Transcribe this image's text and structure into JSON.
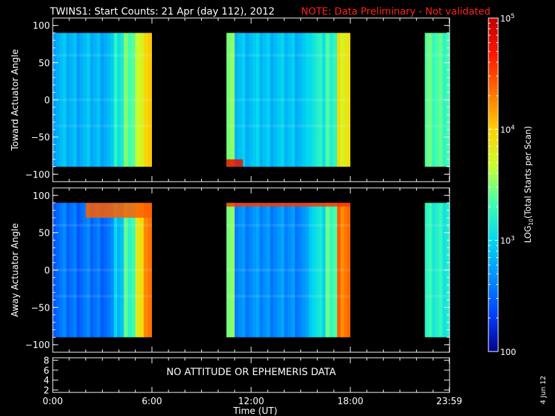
{
  "header": {
    "title": "TWINS1: Start Counts: 21 Apr (day 112), 2012",
    "note": "NOTE: Data Preliminary - Not validated",
    "note_color": "#ff2020"
  },
  "date_stamp": "4 Jun 12",
  "colorbar": {
    "label": "LOG10(Total Starts per Scan)",
    "label_main": "LOG",
    "label_sub": "10",
    "label_rest": "(Total Starts per Scan)",
    "scale": "log",
    "range": [
      100,
      100000
    ],
    "ticks": [
      {
        "value": 100,
        "label": "100"
      },
      {
        "value": 1000,
        "label_base": "10",
        "label_exp": "3"
      },
      {
        "value": 10000,
        "label_base": "10",
        "label_exp": "4"
      },
      {
        "value": 100000,
        "label_base": "10",
        "label_exp": "5"
      }
    ],
    "colormap": [
      "#00008c",
      "#0040ff",
      "#0090ff",
      "#00d8f0",
      "#40ffb0",
      "#c8ff30",
      "#ffd000",
      "#ff7000",
      "#ff1800",
      "#c00000"
    ]
  },
  "chart_data": [
    {
      "type": "heatmap",
      "ylabel": "Toward Actuator Angle",
      "ylim": [
        -110,
        110
      ],
      "yticks": [
        100,
        50,
        0,
        -50,
        -100
      ],
      "xlim": [
        0,
        24
      ],
      "angle_range": [
        -90,
        90
      ],
      "data_intervals": [
        [
          0,
          6
        ],
        [
          10.5,
          18.0
        ],
        [
          22.5,
          24
        ]
      ],
      "bands": [
        {
          "t": [
            0,
            3.7
          ],
          "level": 0.28
        },
        {
          "t": [
            3.7,
            4.3
          ],
          "level": 0.38
        },
        {
          "t": [
            4.3,
            5.0
          ],
          "level": 0.48
        },
        {
          "t": [
            5.0,
            5.5
          ],
          "level": 0.55
        },
        {
          "t": [
            5.5,
            6.0
          ],
          "level": 0.65
        },
        {
          "t": [
            10.5,
            11.0
          ],
          "level": 0.5
        },
        {
          "t": [
            11.0,
            15.5
          ],
          "level": 0.3
        },
        {
          "t": [
            15.5,
            16.5
          ],
          "level": 0.38
        },
        {
          "t": [
            16.5,
            17.2
          ],
          "level": 0.42
        },
        {
          "t": [
            17.2,
            18.0
          ],
          "level": 0.62
        },
        {
          "t": [
            22.5,
            24
          ],
          "level": 0.45
        }
      ],
      "features": [
        {
          "t": [
            10.5,
            11.5
          ],
          "angle": [
            -90,
            -80
          ],
          "level": 0.92
        }
      ]
    },
    {
      "type": "heatmap",
      "ylabel": "Away Actuator Angle",
      "ylim": [
        -110,
        110
      ],
      "yticks": [
        100,
        50,
        0,
        -50,
        -100
      ],
      "xlim": [
        0,
        24
      ],
      "angle_range": [
        -90,
        90
      ],
      "data_intervals": [
        [
          0,
          6
        ],
        [
          10.5,
          18.0
        ],
        [
          22.5,
          24
        ]
      ],
      "bands": [
        {
          "t": [
            0,
            3.7
          ],
          "level": 0.18
        },
        {
          "t": [
            3.7,
            4.3
          ],
          "level": 0.3
        },
        {
          "t": [
            4.3,
            5.0
          ],
          "level": 0.45
        },
        {
          "t": [
            5.0,
            5.5
          ],
          "level": 0.6
        },
        {
          "t": [
            5.5,
            6.0
          ],
          "level": 0.75
        },
        {
          "t": [
            10.5,
            11.0
          ],
          "level": 0.5
        },
        {
          "t": [
            11.0,
            15.5
          ],
          "level": 0.22
        },
        {
          "t": [
            15.5,
            16.5
          ],
          "level": 0.35
        },
        {
          "t": [
            16.5,
            17.2
          ],
          "level": 0.45
        },
        {
          "t": [
            17.2,
            18.0
          ],
          "level": 0.78
        },
        {
          "t": [
            22.5,
            24
          ],
          "level": 0.4
        }
      ],
      "features": [
        {
          "t": [
            2.0,
            6.0
          ],
          "angle": [
            70,
            90
          ],
          "level": 0.8
        },
        {
          "t": [
            10.5,
            18.0
          ],
          "angle": [
            85,
            90
          ],
          "level": 0.85
        }
      ]
    },
    {
      "type": "table",
      "message": "NO ATTITUDE OR EPHEMERIS DATA",
      "ylim": [
        1.5,
        8.5
      ],
      "yticks": [
        "8",
        "6",
        "4",
        "2"
      ]
    }
  ],
  "xaxis": {
    "label": "Time (UT)",
    "ticks": [
      {
        "value": 0,
        "label": "0:00"
      },
      {
        "value": 6,
        "label": "6:00"
      },
      {
        "value": 12,
        "label": "12:00"
      },
      {
        "value": 18,
        "label": "18:00"
      },
      {
        "value": 23.983,
        "label": "23:59"
      }
    ]
  }
}
